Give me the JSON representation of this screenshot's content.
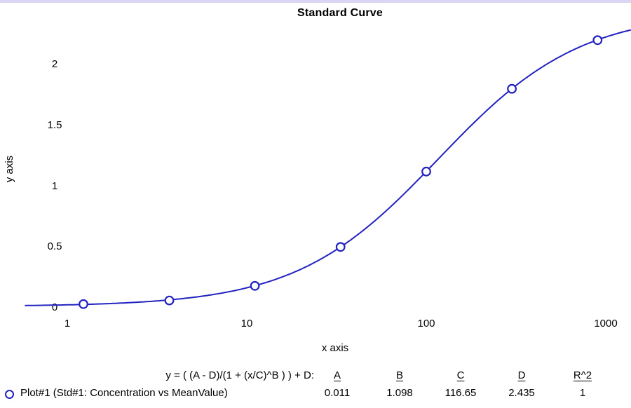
{
  "window": {
    "top_strip_color": "#d9d5f2"
  },
  "chart_data": {
    "type": "line",
    "title": "Standard Curve",
    "xlabel": "x axis",
    "ylabel": "y axis",
    "x_scale": "log",
    "x_ticks": [
      1,
      10,
      100,
      1000
    ],
    "y_ticks": [
      0,
      0.5,
      1,
      1.5,
      2
    ],
    "x_range_approx": [
      0.58,
      1380
    ],
    "y_range_approx": [
      0,
      2.45
    ],
    "grid": false,
    "axis_lines_visible": false,
    "curve_color": "#2222c0",
    "marker": "open-circle",
    "equation": "y = ( (A - D)/(1 + (x/C)^B ) ) + D:",
    "fit_parameters": {
      "A": 0.011,
      "B": 1.098,
      "C": 116.65,
      "D": 2.435,
      "R2": 1
    },
    "fit_table": {
      "headers": [
        "A",
        "B",
        "C",
        "D",
        "R^2"
      ],
      "values": [
        "0.011",
        "1.098",
        "116.65",
        "2.435",
        "1"
      ]
    },
    "legend_label": "Plot#1 (Std#1: Concentration vs MeanValue)",
    "series": [
      {
        "name": "Plot#1 (Std#1: Concentration vs MeanValue)",
        "points": [
          {
            "x": 1.23,
            "y": 0.03
          },
          {
            "x": 3.7,
            "y": 0.06
          },
          {
            "x": 11.1,
            "y": 0.18
          },
          {
            "x": 33.3,
            "y": 0.5
          },
          {
            "x": 100,
            "y": 1.12
          },
          {
            "x": 300,
            "y": 1.8
          },
          {
            "x": 900,
            "y": 2.2
          }
        ]
      }
    ]
  }
}
